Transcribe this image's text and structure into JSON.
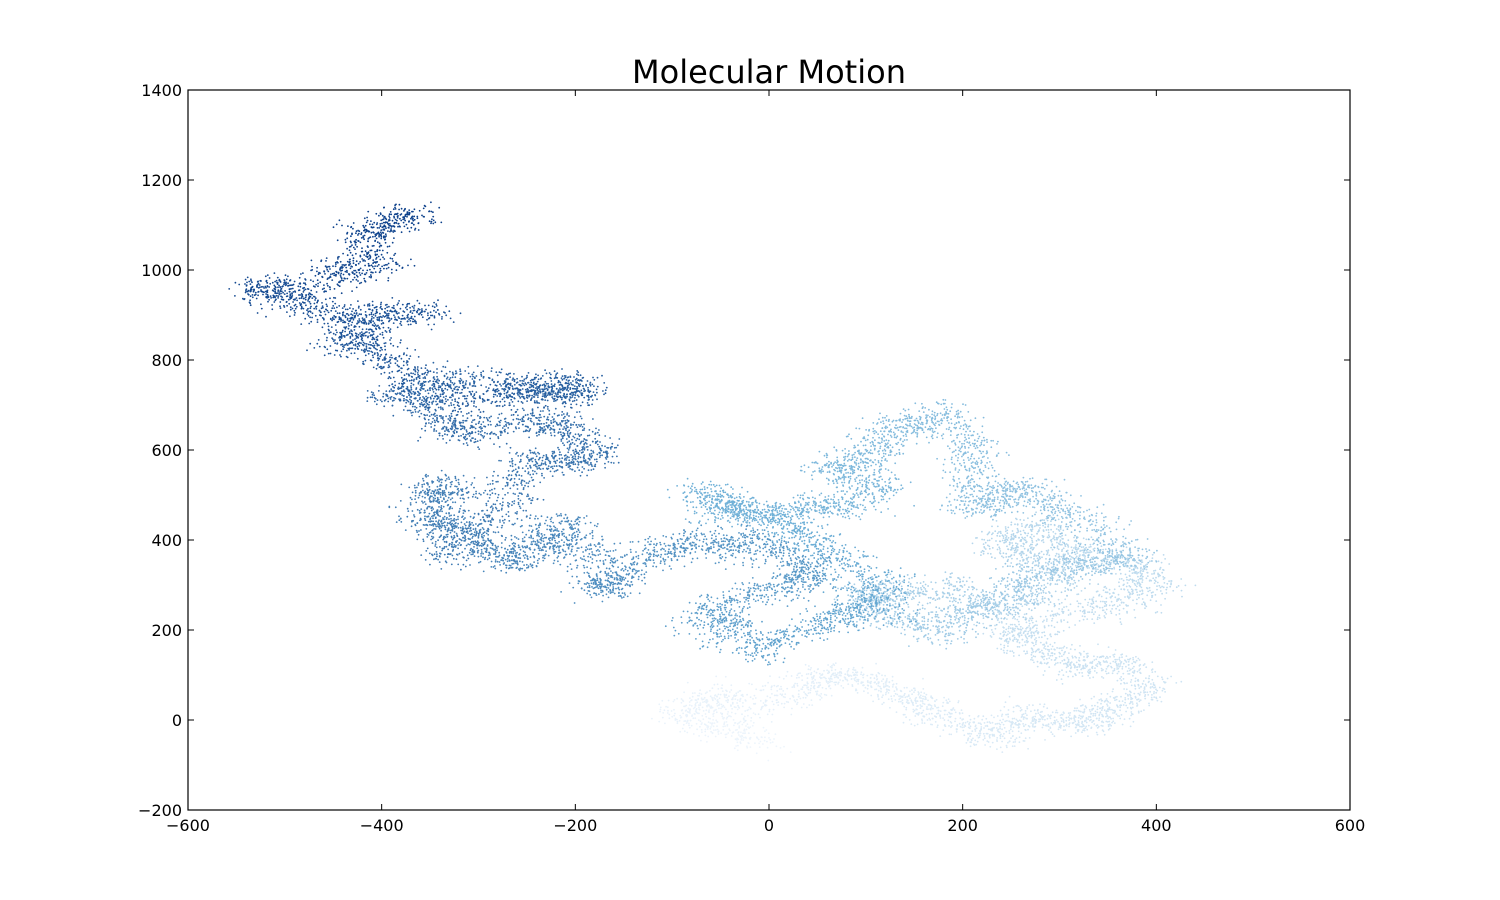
{
  "chart_data": {
    "type": "scatter",
    "title": "Molecular Motion",
    "xlabel": "",
    "ylabel": "",
    "xlim": [
      -600,
      600
    ],
    "ylim": [
      -200,
      1400
    ],
    "xticks": [
      -600,
      -400,
      -200,
      0,
      200,
      400,
      600
    ],
    "yticks": [
      -200,
      0,
      200,
      400,
      600,
      800,
      1000,
      1200,
      1400
    ],
    "xtick_labels": [
      "−600",
      "−400",
      "−200",
      "0",
      "200",
      "400",
      "600"
    ],
    "ytick_labels": [
      "−200",
      "0",
      "200",
      "400",
      "600",
      "800",
      "1000",
      "1200",
      "1400"
    ],
    "grid": false,
    "colormap": "Blues",
    "color_start": "#eef5fc",
    "color_end": "#0b3f8a",
    "walk_path": {
      "description_order": "points ordered from first step (lightest) to last step (darkest)",
      "points": [
        [
          -10,
          -60
        ],
        [
          -40,
          -20
        ],
        [
          -90,
          10
        ],
        [
          -60,
          50
        ],
        [
          0,
          40
        ],
        [
          40,
          90
        ],
        [
          80,
          110
        ],
        [
          120,
          70
        ],
        [
          160,
          40
        ],
        [
          190,
          0
        ],
        [
          230,
          -40
        ],
        [
          260,
          10
        ],
        [
          300,
          0
        ],
        [
          340,
          -10
        ],
        [
          370,
          40
        ],
        [
          390,
          80
        ],
        [
          360,
          130
        ],
        [
          310,
          120
        ],
        [
          280,
          160
        ],
        [
          250,
          200
        ],
        [
          300,
          230
        ],
        [
          360,
          260
        ],
        [
          400,
          300
        ],
        [
          380,
          340
        ],
        [
          330,
          370
        ],
        [
          300,
          400
        ],
        [
          260,
          430
        ],
        [
          240,
          390
        ],
        [
          280,
          350
        ],
        [
          300,
          300
        ],
        [
          250,
          250
        ],
        [
          200,
          280
        ],
        [
          150,
          290
        ],
        [
          110,
          290
        ],
        [
          100,
          260
        ],
        [
          140,
          230
        ],
        [
          180,
          200
        ],
        [
          210,
          230
        ],
        [
          250,
          280
        ],
        [
          280,
          320
        ],
        [
          330,
          350
        ],
        [
          380,
          360
        ],
        [
          340,
          420
        ],
        [
          300,
          470
        ],
        [
          270,
          520
        ],
        [
          240,
          490
        ],
        [
          200,
          480
        ],
        [
          220,
          560
        ],
        [
          200,
          620
        ],
        [
          180,
          690
        ],
        [
          140,
          660
        ],
        [
          110,
          620
        ],
        [
          100,
          570
        ],
        [
          60,
          560
        ],
        [
          120,
          520
        ],
        [
          80,
          480
        ],
        [
          40,
          470
        ],
        [
          0,
          450
        ],
        [
          -40,
          470
        ],
        [
          -70,
          500
        ],
        [
          -30,
          480
        ],
        [
          10,
          440
        ],
        [
          40,
          400
        ],
        [
          80,
          370
        ],
        [
          110,
          300
        ],
        [
          120,
          250
        ],
        [
          80,
          240
        ],
        [
          40,
          200
        ],
        [
          0,
          160
        ],
        [
          -40,
          200
        ],
        [
          -70,
          230
        ],
        [
          -30,
          280
        ],
        [
          20,
          300
        ],
        [
          50,
          330
        ],
        [
          20,
          380
        ],
        [
          -30,
          390
        ],
        [
          -60,
          400
        ],
        [
          -100,
          390
        ],
        [
          -140,
          330
        ],
        [
          -170,
          290
        ],
        [
          -160,
          350
        ],
        [
          -210,
          380
        ],
        [
          -200,
          440
        ],
        [
          -240,
          390
        ],
        [
          -260,
          350
        ],
        [
          -290,
          390
        ],
        [
          -310,
          430
        ],
        [
          -350,
          450
        ],
        [
          -320,
          520
        ],
        [
          -360,
          510
        ],
        [
          -340,
          360
        ],
        [
          -290,
          440
        ],
        [
          -270,
          520
        ],
        [
          -240,
          590
        ],
        [
          -200,
          570
        ],
        [
          -180,
          600
        ],
        [
          -200,
          650
        ],
        [
          -240,
          670
        ],
        [
          -290,
          650
        ],
        [
          -330,
          640
        ],
        [
          -350,
          700
        ],
        [
          -380,
          720
        ],
        [
          -340,
          760
        ],
        [
          -260,
          740
        ],
        [
          -220,
          720
        ],
        [
          -190,
          730
        ],
        [
          -210,
          750
        ],
        [
          -260,
          740
        ],
        [
          -310,
          700
        ],
        [
          -360,
          760
        ],
        [
          -400,
          810
        ],
        [
          -440,
          840
        ],
        [
          -410,
          880
        ],
        [
          -360,
          900
        ],
        [
          -400,
          910
        ],
        [
          -460,
          900
        ],
        [
          -500,
          940
        ],
        [
          -530,
          970
        ],
        [
          -470,
          960
        ],
        [
          -440,
          1000
        ],
        [
          -400,
          1020
        ],
        [
          -420,
          1080
        ],
        [
          -380,
          1110
        ],
        [
          -360,
          1130
        ]
      ]
    }
  }
}
